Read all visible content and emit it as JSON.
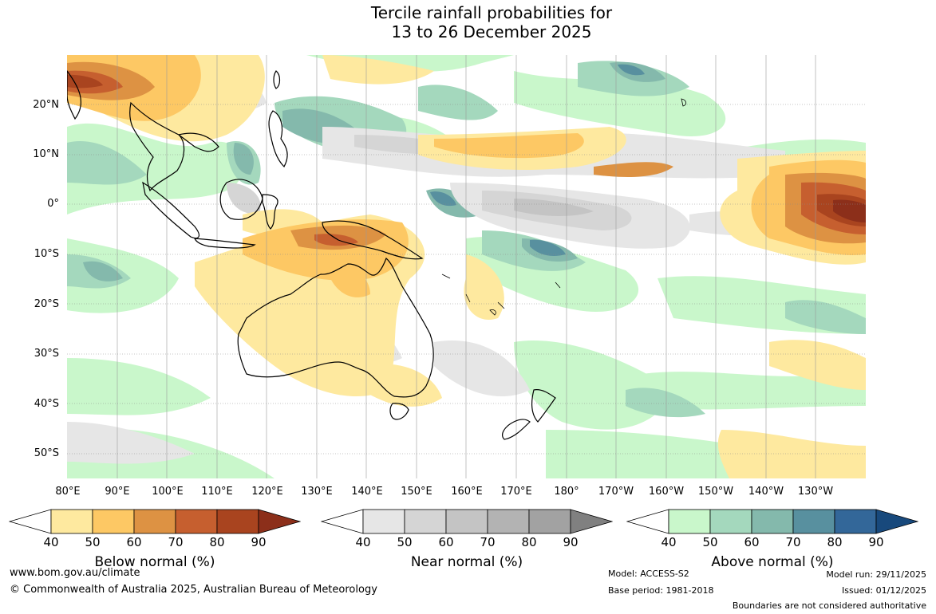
{
  "title": {
    "line1": "Tercile rainfall probabilities for",
    "line2": "13 to 26 December 2025"
  },
  "map": {
    "lat_labels": [
      "20°N",
      "10°N",
      "0°",
      "10°S",
      "20°S",
      "30°S",
      "40°S",
      "50°S"
    ],
    "lon_labels": [
      "80°E",
      "90°E",
      "100°E",
      "110°E",
      "120°E",
      "130°E",
      "140°E",
      "150°E",
      "160°E",
      "170°E",
      "180°",
      "170°W",
      "160°W",
      "150°W",
      "140°W",
      "130°W"
    ]
  },
  "colorbars": [
    {
      "name": "below",
      "label": "Below normal (%)",
      "ticks": [
        "40",
        "50",
        "60",
        "70",
        "80",
        "90"
      ],
      "colors": [
        "#ffffff",
        "#fee99f",
        "#fdc864",
        "#dd9243",
        "#c65f2f",
        "#a9441f",
        "#8c2f1a"
      ]
    },
    {
      "name": "near",
      "label": "Near normal (%)",
      "ticks": [
        "40",
        "50",
        "60",
        "70",
        "80",
        "90"
      ],
      "colors": [
        "#ffffff",
        "#e6e6e6",
        "#d5d5d5",
        "#c4c4c4",
        "#b3b3b3",
        "#a2a2a2",
        "#808080"
      ]
    },
    {
      "name": "above",
      "label": "Above normal (%)",
      "ticks": [
        "40",
        "50",
        "60",
        "70",
        "80",
        "90"
      ],
      "colors": [
        "#ffffff",
        "#c9f7cb",
        "#a4d8bd",
        "#84b9ac",
        "#58909f",
        "#336799",
        "#18497c"
      ]
    }
  ],
  "footer": {
    "website": "www.bom.gov.au/climate",
    "copyright": "© Commonwealth of Australia 2025, Australian Bureau of Meteorology",
    "model": "Model: ACCESS-S2",
    "base_period": "Base period: 1981-2018",
    "model_run": "Model run: 29/11/2025",
    "issued": "Issued: 01/12/2025",
    "disclaimer": "Boundaries are not considered authoritative"
  }
}
